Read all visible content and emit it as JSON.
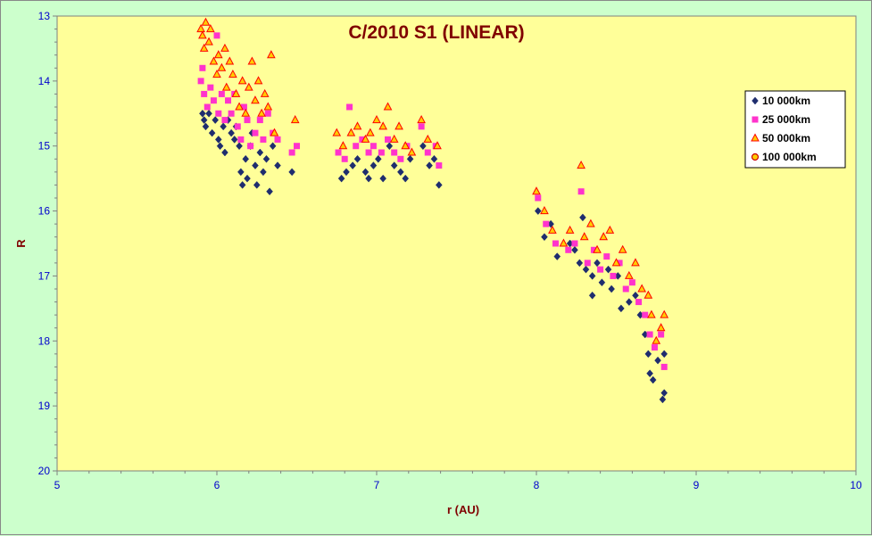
{
  "chart_data": {
    "type": "scatter",
    "title": "C/2010 S1 (LINEAR)",
    "xlabel": "r (AU)",
    "ylabel": "R",
    "xlim": [
      5,
      10
    ],
    "ylim": [
      13,
      20
    ],
    "y_inverted": true,
    "x_ticks": [
      5,
      6,
      7,
      8,
      9,
      10
    ],
    "y_ticks": [
      13,
      14,
      15,
      16,
      17,
      18,
      19,
      20
    ],
    "grid": false,
    "legend_placement": "right",
    "colors": {
      "background": "#ccffcc",
      "plot_area": "#ffff99",
      "title": "#800000",
      "tick_labels": "#0000cc"
    },
    "series": [
      {
        "name": "10 000km",
        "marker": "diamond",
        "color": "#1f2d6e",
        "points": [
          [
            5.91,
            14.5
          ],
          [
            5.92,
            14.6
          ],
          [
            5.93,
            14.7
          ],
          [
            5.95,
            14.5
          ],
          [
            5.97,
            14.8
          ],
          [
            5.99,
            14.6
          ],
          [
            6.01,
            14.9
          ],
          [
            6.02,
            15.0
          ],
          [
            6.04,
            14.7
          ],
          [
            6.05,
            15.1
          ],
          [
            6.07,
            14.6
          ],
          [
            6.09,
            14.8
          ],
          [
            6.11,
            14.9
          ],
          [
            6.12,
            14.7
          ],
          [
            6.14,
            15.0
          ],
          [
            6.15,
            15.4
          ],
          [
            6.16,
            15.6
          ],
          [
            6.18,
            15.2
          ],
          [
            6.19,
            15.5
          ],
          [
            6.21,
            15.0
          ],
          [
            6.22,
            14.8
          ],
          [
            6.24,
            15.3
          ],
          [
            6.25,
            15.6
          ],
          [
            6.27,
            15.1
          ],
          [
            6.29,
            15.4
          ],
          [
            6.31,
            15.2
          ],
          [
            6.33,
            15.7
          ],
          [
            6.35,
            15.0
          ],
          [
            6.38,
            15.3
          ],
          [
            6.47,
            15.4
          ],
          [
            6.78,
            15.5
          ],
          [
            6.81,
            15.4
          ],
          [
            6.85,
            15.3
          ],
          [
            6.88,
            15.2
          ],
          [
            6.93,
            15.4
          ],
          [
            6.95,
            15.5
          ],
          [
            6.98,
            15.3
          ],
          [
            7.01,
            15.2
          ],
          [
            7.04,
            15.5
          ],
          [
            7.08,
            15.0
          ],
          [
            7.11,
            15.3
          ],
          [
            7.15,
            15.4
          ],
          [
            7.18,
            15.5
          ],
          [
            7.21,
            15.2
          ],
          [
            7.29,
            15.0
          ],
          [
            7.33,
            15.3
          ],
          [
            7.36,
            15.2
          ],
          [
            7.39,
            15.6
          ],
          [
            8.01,
            16.0
          ],
          [
            8.05,
            16.4
          ],
          [
            8.09,
            16.2
          ],
          [
            8.13,
            16.7
          ],
          [
            8.21,
            16.5
          ],
          [
            8.24,
            16.6
          ],
          [
            8.27,
            16.8
          ],
          [
            8.29,
            16.1
          ],
          [
            8.31,
            16.9
          ],
          [
            8.35,
            17.0
          ],
          [
            8.35,
            17.3
          ],
          [
            8.38,
            16.8
          ],
          [
            8.41,
            17.1
          ],
          [
            8.45,
            16.9
          ],
          [
            8.47,
            17.2
          ],
          [
            8.51,
            17.0
          ],
          [
            8.53,
            17.5
          ],
          [
            8.58,
            17.4
          ],
          [
            8.62,
            17.3
          ],
          [
            8.65,
            17.6
          ],
          [
            8.68,
            17.9
          ],
          [
            8.7,
            18.2
          ],
          [
            8.71,
            18.5
          ],
          [
            8.73,
            18.6
          ],
          [
            8.76,
            18.3
          ],
          [
            8.79,
            18.9
          ],
          [
            8.8,
            18.8
          ],
          [
            8.8,
            18.2
          ]
        ]
      },
      {
        "name": "25 000km",
        "marker": "square",
        "color": "#ff33cc",
        "points": [
          [
            5.9,
            14.0
          ],
          [
            5.91,
            13.8
          ],
          [
            5.92,
            14.2
          ],
          [
            5.94,
            14.4
          ],
          [
            5.96,
            14.1
          ],
          [
            5.98,
            14.3
          ],
          [
            6.0,
            13.3
          ],
          [
            6.01,
            14.5
          ],
          [
            6.03,
            14.2
          ],
          [
            6.05,
            14.6
          ],
          [
            6.07,
            14.3
          ],
          [
            6.09,
            14.5
          ],
          [
            6.11,
            14.2
          ],
          [
            6.13,
            14.7
          ],
          [
            6.15,
            14.9
          ],
          [
            6.17,
            14.4
          ],
          [
            6.19,
            14.6
          ],
          [
            6.21,
            15.0
          ],
          [
            6.24,
            14.8
          ],
          [
            6.27,
            14.6
          ],
          [
            6.29,
            14.9
          ],
          [
            6.32,
            14.5
          ],
          [
            6.35,
            14.8
          ],
          [
            6.38,
            14.9
          ],
          [
            6.47,
            15.1
          ],
          [
            6.5,
            15.0
          ],
          [
            6.76,
            15.1
          ],
          [
            6.8,
            15.2
          ],
          [
            6.83,
            14.4
          ],
          [
            6.87,
            15.0
          ],
          [
            6.91,
            14.9
          ],
          [
            6.95,
            15.1
          ],
          [
            6.98,
            15.0
          ],
          [
            7.03,
            15.1
          ],
          [
            7.07,
            14.9
          ],
          [
            7.11,
            15.1
          ],
          [
            7.15,
            15.2
          ],
          [
            7.19,
            15.0
          ],
          [
            7.28,
            14.7
          ],
          [
            7.32,
            15.1
          ],
          [
            7.37,
            15.0
          ],
          [
            7.39,
            15.3
          ],
          [
            8.01,
            15.8
          ],
          [
            8.06,
            16.2
          ],
          [
            8.12,
            16.5
          ],
          [
            8.2,
            16.6
          ],
          [
            8.24,
            16.5
          ],
          [
            8.28,
            15.7
          ],
          [
            8.32,
            16.8
          ],
          [
            8.36,
            16.6
          ],
          [
            8.4,
            16.9
          ],
          [
            8.44,
            16.7
          ],
          [
            8.48,
            17.0
          ],
          [
            8.52,
            16.8
          ],
          [
            8.56,
            17.2
          ],
          [
            8.6,
            17.1
          ],
          [
            8.64,
            17.4
          ],
          [
            8.68,
            17.6
          ],
          [
            8.71,
            17.9
          ],
          [
            8.74,
            18.1
          ],
          [
            8.78,
            17.9
          ],
          [
            8.8,
            18.4
          ]
        ]
      },
      {
        "name": "50 000km",
        "marker": "triangle",
        "color": "#ff0000",
        "fill": "#ffcc00",
        "points": [
          [
            5.9,
            13.2
          ],
          [
            5.91,
            13.3
          ],
          [
            5.92,
            13.5
          ],
          [
            5.93,
            13.1
          ],
          [
            5.95,
            13.4
          ],
          [
            5.96,
            13.2
          ],
          [
            5.98,
            13.7
          ],
          [
            6.0,
            13.9
          ],
          [
            6.01,
            13.6
          ],
          [
            6.03,
            13.8
          ],
          [
            6.05,
            13.5
          ],
          [
            6.06,
            14.1
          ],
          [
            6.08,
            13.7
          ],
          [
            6.1,
            13.9
          ],
          [
            6.12,
            14.2
          ],
          [
            6.14,
            14.4
          ],
          [
            6.16,
            14.0
          ],
          [
            6.18,
            14.5
          ],
          [
            6.2,
            14.1
          ],
          [
            6.22,
            13.7
          ],
          [
            6.24,
            14.3
          ],
          [
            6.26,
            14.0
          ],
          [
            6.28,
            14.5
          ],
          [
            6.3,
            14.2
          ],
          [
            6.32,
            14.4
          ],
          [
            6.34,
            13.6
          ],
          [
            6.36,
            14.8
          ],
          [
            6.49,
            14.6
          ],
          [
            6.75,
            14.8
          ],
          [
            6.79,
            15.0
          ],
          [
            6.84,
            14.8
          ],
          [
            6.88,
            14.7
          ],
          [
            6.93,
            14.9
          ],
          [
            6.96,
            14.8
          ],
          [
            7.0,
            14.6
          ],
          [
            7.04,
            14.7
          ],
          [
            7.07,
            14.4
          ],
          [
            7.11,
            14.9
          ],
          [
            7.14,
            14.7
          ],
          [
            7.18,
            15.0
          ],
          [
            7.22,
            15.1
          ],
          [
            7.28,
            14.6
          ],
          [
            7.32,
            14.9
          ],
          [
            7.38,
            15.0
          ],
          [
            8.0,
            15.7
          ],
          [
            8.05,
            16.0
          ],
          [
            8.1,
            16.3
          ],
          [
            8.17,
            16.5
          ],
          [
            8.21,
            16.3
          ],
          [
            8.28,
            15.3
          ],
          [
            8.3,
            16.4
          ],
          [
            8.34,
            16.2
          ],
          [
            8.38,
            16.6
          ],
          [
            8.42,
            16.4
          ],
          [
            8.46,
            16.3
          ],
          [
            8.5,
            16.8
          ],
          [
            8.54,
            16.6
          ],
          [
            8.58,
            17.0
          ],
          [
            8.62,
            16.8
          ],
          [
            8.66,
            17.2
          ],
          [
            8.7,
            17.3
          ],
          [
            8.72,
            17.6
          ],
          [
            8.75,
            18.0
          ],
          [
            8.78,
            17.8
          ],
          [
            8.8,
            17.6
          ]
        ]
      },
      {
        "name": "100 000km",
        "marker": "circle",
        "color": "#cc0000",
        "points": []
      }
    ]
  }
}
